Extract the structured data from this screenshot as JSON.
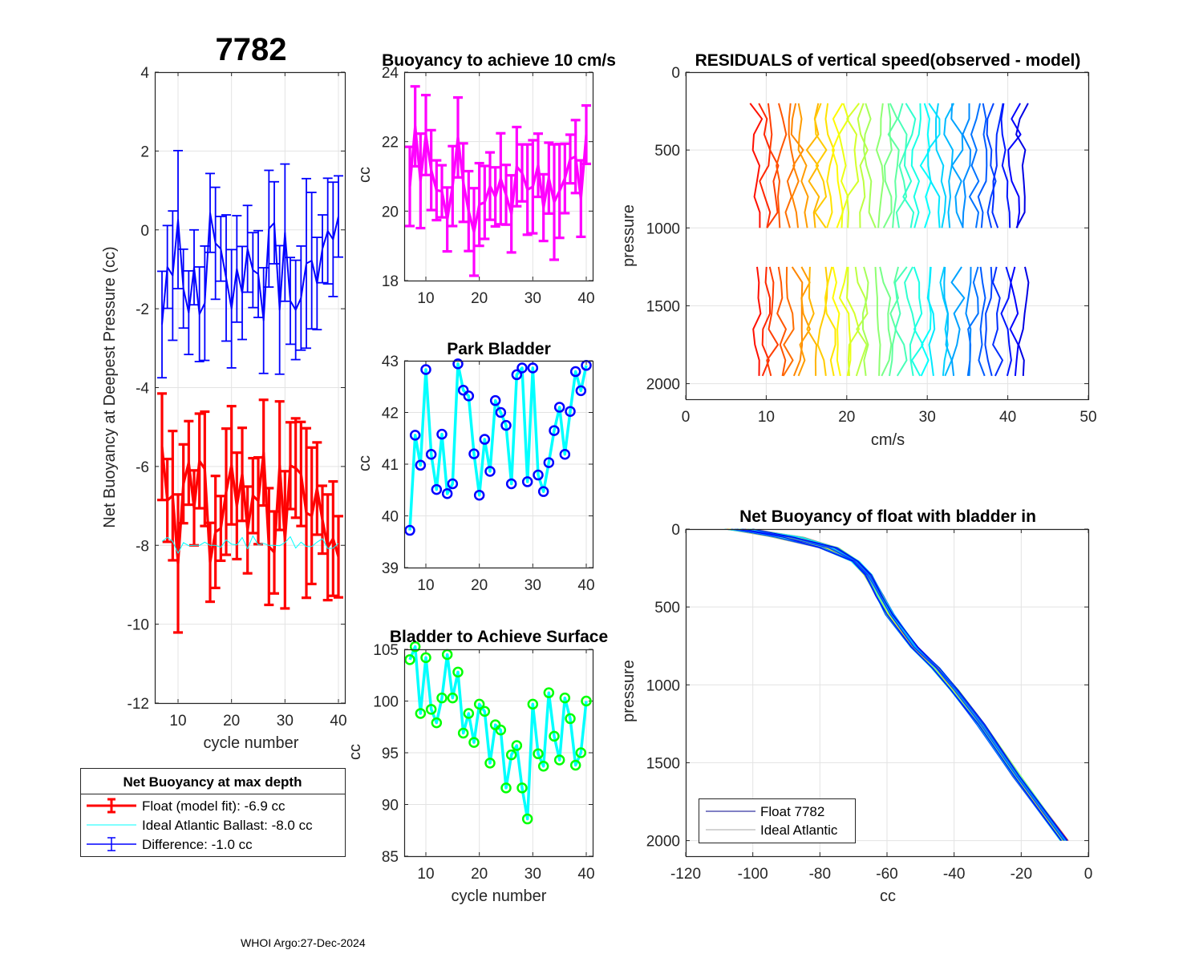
{
  "footer": "WHOI Argo:27-Dec-2024",
  "colors": {
    "float": "#ff0000",
    "ideal": "#00ffff",
    "difference": "#0000ff",
    "buoyancy": "#ff00ff",
    "park_marker": "#0000ff",
    "surface_marker": "#00ff00",
    "grid": "#dcdcdc"
  },
  "chart_data": [
    {
      "id": "net-buoyancy",
      "type": "line",
      "title": "7782",
      "xlabel": "cycle number",
      "ylabel": "Net Buoyancy at Deepest Pressure (cc)",
      "xlim": [
        5.65,
        41.2
      ],
      "ylim": [
        -12,
        4
      ],
      "xticks": [
        10,
        20,
        30,
        40
      ],
      "yticks": [
        -12,
        -10,
        -8,
        -6,
        -4,
        -2,
        0,
        2,
        4
      ],
      "x": [
        7,
        8,
        9,
        10,
        11,
        12,
        13,
        14,
        15,
        16,
        17,
        18,
        19,
        20,
        21,
        22,
        23,
        24,
        25,
        26,
        27,
        28,
        29,
        30,
        31,
        32,
        33,
        34,
        35,
        36,
        37,
        38,
        39,
        40
      ],
      "series": [
        {
          "name": "Float (model fit)",
          "color": "#ff0000",
          "values": [
            -5.5,
            -6.86,
            -6.74,
            -8.46,
            -6.44,
            -5.91,
            -7.05,
            -5.86,
            -6.06,
            -8.43,
            -7.66,
            -7.57,
            -6.64,
            -5.97,
            -7.0,
            -6.2,
            -7.61,
            -6.74,
            -6.87,
            -5.65,
            -8.03,
            -8.18,
            -5.98,
            -7.86,
            -5.98,
            -6.04,
            -6.19,
            -7.18,
            -7.25,
            -6.56,
            -7.35,
            -8.05,
            -7.83,
            -8.29
          ],
          "errors": [
            1.35,
            1.05,
            1.64,
            1.75,
            1.0,
            1.06,
            0.95,
            1.2,
            1.45,
            1.0,
            1.42,
            0.82,
            1.6,
            1.5,
            1.35,
            1.18,
            1.1,
            0.95,
            1.1,
            1.34,
            1.48,
            1.04,
            1.63,
            1.74,
            1.1,
            1.26,
            1.32,
            2.15,
            1.73,
            1.17,
            0.86,
            1.34,
            1.45,
            1.03
          ]
        },
        {
          "name": "Ideal Atlantic Ballast",
          "color": "#00ffff",
          "values": [
            -7.9,
            -7.8,
            -7.9,
            -8.2,
            -7.93,
            -8.01,
            -8.0,
            -8.0,
            -7.92,
            -8.0,
            -8.0,
            -8.05,
            -7.86,
            -7.97,
            -7.99,
            -7.8,
            -8.09,
            -7.76,
            -7.99,
            -7.95,
            -8.0,
            -8.0,
            -8.01,
            -7.93,
            -7.78,
            -8.07,
            -7.92,
            -8.03,
            -8.03,
            -7.92,
            -7.83,
            -8.08,
            -8.07,
            -7.95
          ]
        },
        {
          "name": "Difference",
          "color": "#0000ff",
          "values": [
            -2.4,
            -0.94,
            -1.16,
            0.26,
            -1.49,
            -2.1,
            -0.95,
            -2.14,
            -1.86,
            0.43,
            -0.34,
            -0.48,
            -1.22,
            -2.0,
            -0.99,
            -1.6,
            -0.48,
            -1.02,
            -1.12,
            -2.3,
            0.03,
            0.18,
            -2.03,
            -0.07,
            -1.8,
            -2.03,
            -1.73,
            -0.85,
            -0.78,
            -1.36,
            -0.48,
            -0.03,
            -0.24,
            0.34
          ],
          "errors": [
            1.35,
            1.05,
            1.64,
            1.75,
            1.0,
            1.06,
            0.95,
            1.2,
            1.45,
            1.0,
            1.42,
            0.82,
            1.6,
            1.5,
            1.35,
            1.18,
            1.1,
            0.95,
            1.1,
            1.34,
            1.48,
            1.04,
            1.63,
            1.74,
            1.1,
            1.26,
            1.32,
            2.15,
            1.73,
            1.17,
            0.86,
            1.34,
            1.45,
            1.03
          ]
        }
      ],
      "legend": {
        "title": "Net Buoyancy at max depth",
        "entries": [
          "Float (model fit):  -6.9 cc",
          "Ideal Atlantic Ballast:  -8.0 cc",
          "Difference:  -1.0 cc"
        ],
        "placement": "below"
      }
    },
    {
      "id": "buoyancy-10cms",
      "type": "line",
      "title": "Buoyancy to achieve 10 cm/s",
      "xlabel": "",
      "ylabel": "cc",
      "xlim": [
        5.95,
        41.2
      ],
      "ylim": [
        18,
        24
      ],
      "xticks": [
        10,
        20,
        30,
        40
      ],
      "yticks": [
        18,
        20,
        22,
        24
      ],
      "x": [
        7,
        8,
        9,
        10,
        11,
        12,
        13,
        14,
        15,
        16,
        17,
        18,
        19,
        20,
        21,
        22,
        23,
        24,
        25,
        26,
        27,
        28,
        29,
        30,
        31,
        32,
        33,
        34,
        35,
        36,
        37,
        38,
        39,
        40
      ],
      "values": [
        20.71,
        22.44,
        20.87,
        22.19,
        21.18,
        20.6,
        20.57,
        19.76,
        20.72,
        22.12,
        20.82,
        20.0,
        19.4,
        20.19,
        20.25,
        20.72,
        20.41,
        20.93,
        20.47,
        19.92,
        21.28,
        21.1,
        20.62,
        20.7,
        21.32,
        20.1,
        20.95,
        20.26,
        20.58,
        20.94,
        21.5,
        21.57,
        20.36,
        22.2
      ],
      "errors": [
        1.14,
        1.15,
        1.36,
        1.15,
        1.15,
        0.86,
        0.75,
        0.92,
        1.15,
        1.15,
        1.13,
        1.15,
        1.26,
        1.19,
        1.05,
        0.97,
        0.85,
        1.31,
        0.86,
        1.11,
        1.14,
        0.82,
        1.3,
        1.34,
        0.91,
        0.96,
        1.02,
        1.66,
        1.35,
        1.0,
        0.7,
        1.05,
        1.1,
        0.84
      ]
    },
    {
      "id": "park-bladder",
      "type": "line",
      "title": "Park Bladder",
      "xlabel": "",
      "ylabel": "cc",
      "xlim": [
        5.95,
        41.2
      ],
      "ylim": [
        39,
        43
      ],
      "xticks": [
        10,
        20,
        30,
        40
      ],
      "yticks": [
        39,
        40,
        41,
        42,
        43
      ],
      "x": [
        7,
        8,
        9,
        10,
        11,
        12,
        13,
        14,
        15,
        16,
        17,
        18,
        19,
        20,
        21,
        22,
        23,
        24,
        25,
        26,
        27,
        28,
        29,
        30,
        31,
        32,
        33,
        34,
        35,
        36,
        37,
        38,
        39,
        40
      ],
      "values": [
        39.72,
        41.56,
        40.98,
        42.83,
        41.19,
        40.51,
        41.58,
        40.43,
        40.62,
        42.94,
        42.43,
        42.32,
        41.2,
        40.4,
        41.48,
        40.86,
        42.23,
        42.0,
        41.75,
        40.62,
        42.73,
        42.86,
        40.66,
        42.86,
        40.79,
        40.47,
        41.03,
        41.65,
        42.1,
        41.19,
        42.02,
        42.79,
        42.42,
        42.91
      ]
    },
    {
      "id": "bladder-surface",
      "type": "line",
      "title": "Bladder to Achieve Surface",
      "xlabel": "cycle number",
      "ylabel": "cc",
      "xlim": [
        5.95,
        41.2
      ],
      "ylim": [
        85,
        105
      ],
      "xticks": [
        10,
        20,
        30,
        40
      ],
      "yticks": [
        85,
        90,
        95,
        100,
        105
      ],
      "x": [
        7,
        8,
        9,
        10,
        11,
        12,
        13,
        14,
        15,
        16,
        17,
        18,
        19,
        20,
        21,
        22,
        23,
        24,
        25,
        26,
        27,
        28,
        29,
        30,
        31,
        32,
        33,
        34,
        35,
        36,
        37,
        38,
        39,
        40
      ],
      "values": [
        104.0,
        105.26,
        98.8,
        104.2,
        99.2,
        97.9,
        100.3,
        104.5,
        100.3,
        102.8,
        96.9,
        98.8,
        96.0,
        99.7,
        99.0,
        94.0,
        97.7,
        97.2,
        91.6,
        94.8,
        95.7,
        91.6,
        88.6,
        99.7,
        94.9,
        93.7,
        100.8,
        96.6,
        94.3,
        100.3,
        98.3,
        93.8,
        95.0,
        100.0
      ]
    },
    {
      "id": "residuals",
      "type": "line",
      "title": "RESIDUALS of vertical speed(observed - model)",
      "xlabel": "cm/s",
      "ylabel": "pressure",
      "xlim": [
        0,
        50
      ],
      "ylim": [
        0,
        2100
      ],
      "y_reversed": true,
      "xticks": [
        0,
        10,
        20,
        30,
        40,
        50
      ],
      "yticks": [
        0,
        500,
        1000,
        1500,
        2000
      ],
      "profile_offsets": [
        8.8,
        9.8,
        10.8,
        11.8,
        12.8,
        13.8,
        14.8,
        15.8,
        16.8,
        17.8,
        18.8,
        19.8,
        20.8,
        21.8,
        22.8,
        23.8,
        24.8,
        25.8,
        26.8,
        27.8,
        28.8,
        29.8,
        30.8,
        31.8,
        32.8,
        33.8,
        34.8,
        35.8,
        36.8,
        37.8,
        38.8,
        39.8,
        40.8,
        41.8
      ],
      "pressure_segments": [
        [
          200,
          1000
        ],
        [
          1250,
          2000
        ]
      ],
      "colormap": "jet"
    },
    {
      "id": "net-buoyancy-profile",
      "type": "line",
      "title": "Net Buoyancy of float with bladder in",
      "xlabel": "cc",
      "ylabel": "pressure",
      "xlim": [
        -120,
        0
      ],
      "ylim": [
        0,
        2100
      ],
      "y_reversed": true,
      "xticks": [
        -120,
        -100,
        -80,
        -60,
        -40,
        -20,
        0
      ],
      "yticks": [
        0,
        500,
        1000,
        1500,
        2000
      ],
      "mean_profile": {
        "cc": [
          -104,
          -89.4,
          -77.4,
          -69.4,
          -65.6,
          -62.2,
          -59.1,
          -51.9,
          -45.5,
          -40,
          -32,
          -21.5,
          -7.2
        ],
        "pressure": [
          0,
          52,
          119,
          206,
          293,
          428,
          549,
          757,
          892,
          1031,
          1253,
          1582,
          2000
        ]
      },
      "legend": {
        "entries": [
          "Float 7782",
          "Ideal Atlantic"
        ],
        "colors": [
          "#00008b",
          "#aaaaaa"
        ],
        "placement": "bottom-left"
      }
    }
  ]
}
